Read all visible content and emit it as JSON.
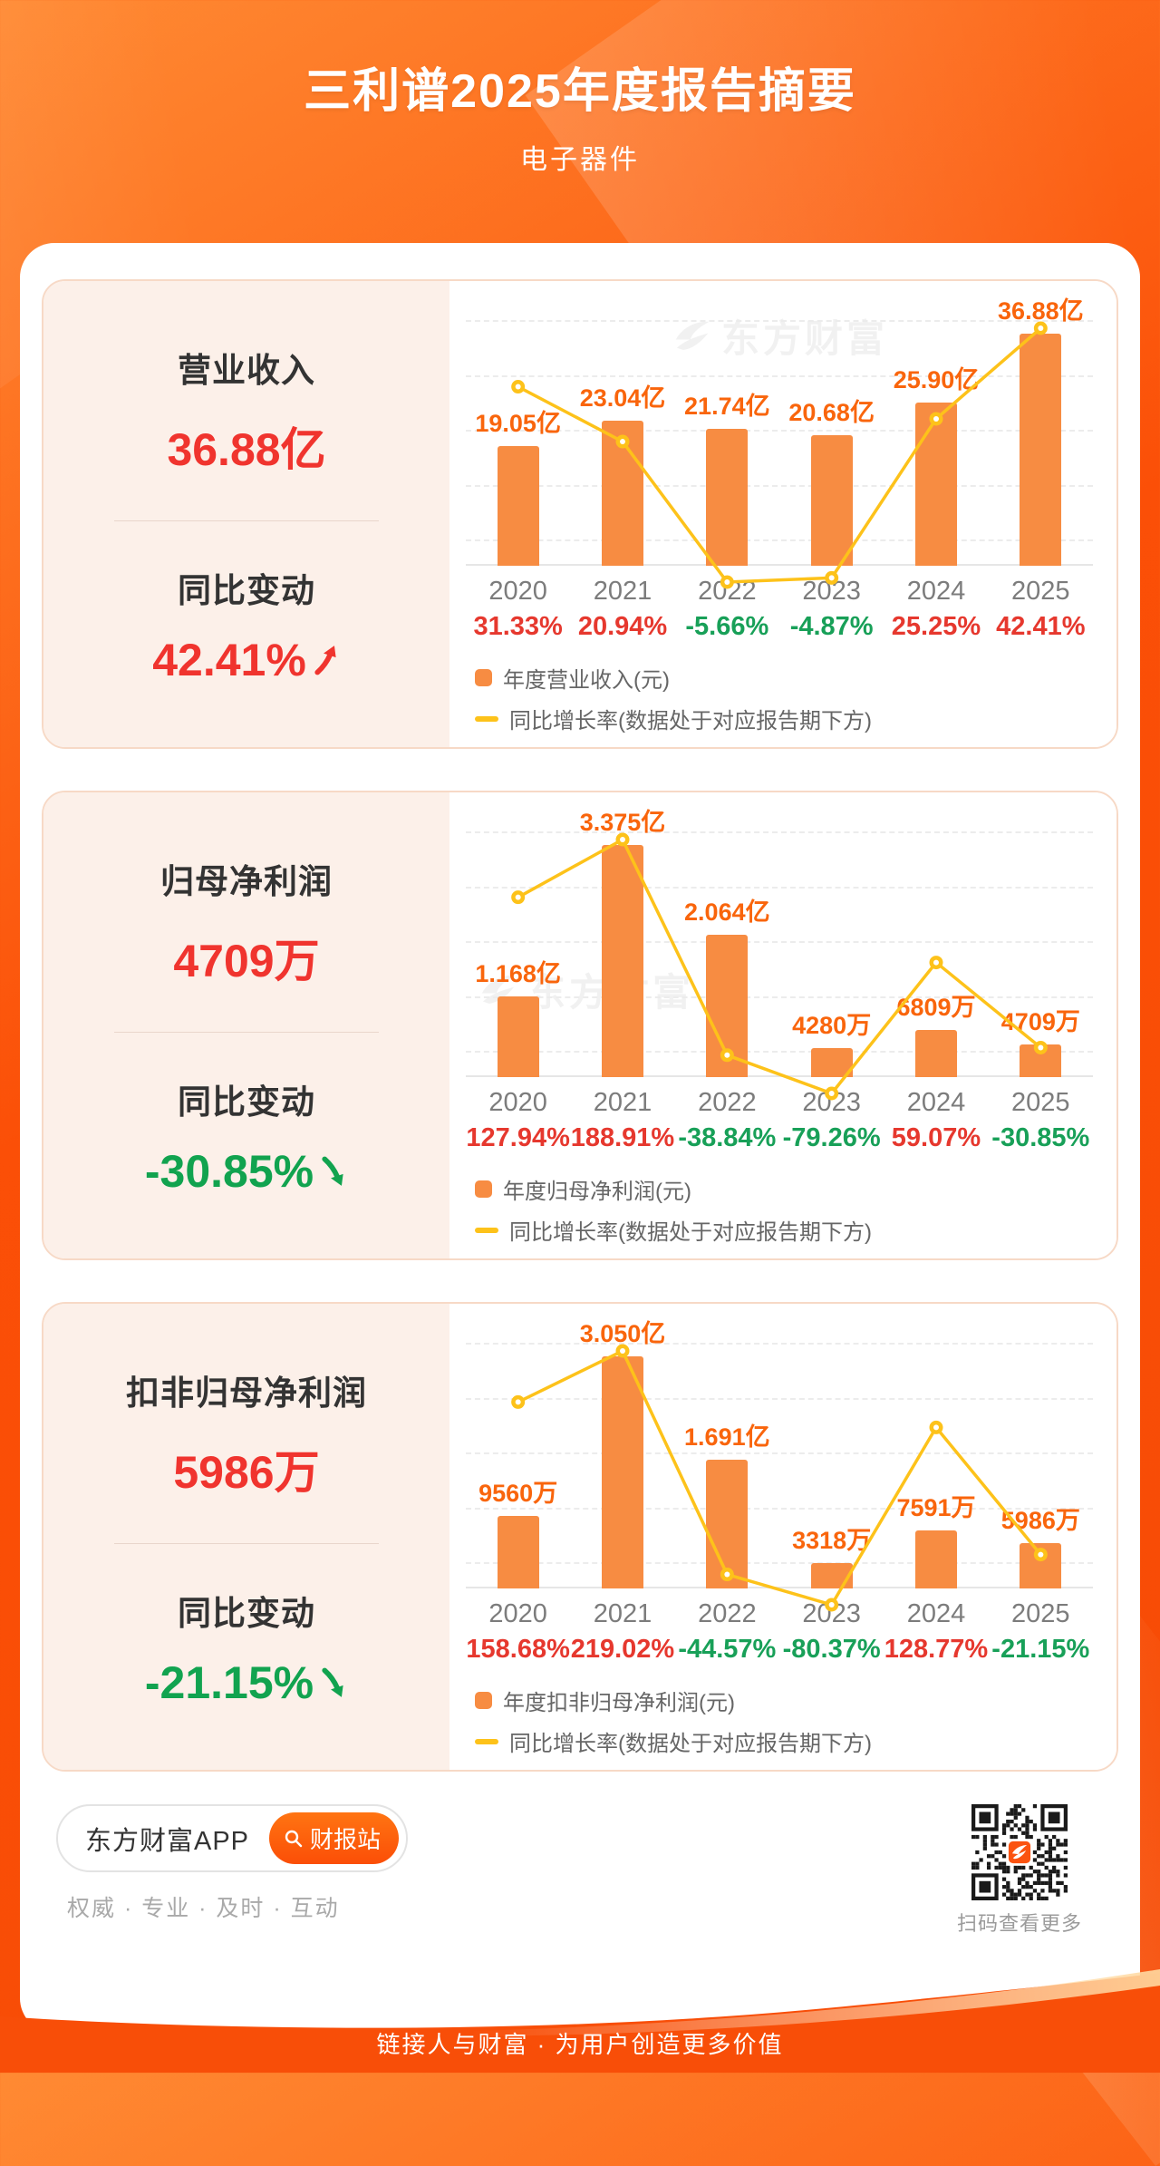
{
  "header": {
    "title": "三利谱2025年度报告摘要",
    "subtitle": "电子器件"
  },
  "watermark": "东方财富",
  "colors": {
    "bar": "#f78c42",
    "line": "#fdc21a",
    "value_label": "#f9650c",
    "up_red": "#f0342e",
    "down_green": "#11a34f",
    "background_orange": "#fb4f07",
    "panel_pink": "#fcf0e9",
    "panel_border": "#f7d9c6"
  },
  "panels": [
    {
      "title": "营业收入",
      "value": "36.88亿",
      "change_title": "同比变动",
      "change_value": "42.41%",
      "change_dir": "up"
    },
    {
      "title": "归母净利润",
      "value": "4709万",
      "change_title": "同比变动",
      "change_value": "-30.85%",
      "change_dir": "down"
    },
    {
      "title": "扣非归母净利润",
      "value": "5986万",
      "change_title": "同比变动",
      "change_value": "-21.15%",
      "change_dir": "down"
    }
  ],
  "chart_data": [
    {
      "type": "bar+line",
      "title": "营业收入",
      "categories": [
        "2020",
        "2021",
        "2022",
        "2023",
        "2024",
        "2025"
      ],
      "series": [
        {
          "name": "年度营业收入(元)",
          "type": "bar",
          "unit": "亿",
          "values": [
            19.05,
            23.04,
            21.74,
            20.68,
            25.9,
            36.88
          ],
          "labels": [
            "19.05亿",
            "23.04亿",
            "21.74亿",
            "20.68亿",
            "25.90亿",
            "36.88亿"
          ]
        },
        {
          "name": "同比增长率(数据处于对应报告期下方)",
          "type": "line",
          "unit": "%",
          "values": [
            31.33,
            20.94,
            -5.66,
            -4.87,
            25.25,
            42.41
          ],
          "labels": [
            "31.33%",
            "20.94%",
            "-5.66%",
            "-4.87%",
            "25.25%",
            "42.41%"
          ]
        }
      ],
      "grid": true,
      "legend_position": "bottom-left"
    },
    {
      "type": "bar+line",
      "title": "归母净利润",
      "categories": [
        "2020",
        "2021",
        "2022",
        "2023",
        "2024",
        "2025"
      ],
      "series": [
        {
          "name": "年度归母净利润(元)",
          "type": "bar",
          "unit": "万",
          "values": [
            11680,
            33750,
            20640,
            4280,
            6809,
            4709
          ],
          "labels": [
            "1.168亿",
            "3.375亿",
            "2.064亿",
            "4280万",
            "6809万",
            "4709万"
          ]
        },
        {
          "name": "同比增长率(数据处于对应报告期下方)",
          "type": "line",
          "unit": "%",
          "values": [
            127.94,
            188.91,
            -38.84,
            -79.26,
            59.07,
            -30.85
          ],
          "labels": [
            "127.94%",
            "188.91%",
            "-38.84%",
            "-79.26%",
            "59.07%",
            "-30.85%"
          ]
        }
      ],
      "grid": true,
      "legend_position": "bottom-left"
    },
    {
      "type": "bar+line",
      "title": "扣非归母净利润",
      "categories": [
        "2020",
        "2021",
        "2022",
        "2023",
        "2024",
        "2025"
      ],
      "series": [
        {
          "name": "年度扣非归母净利润(元)",
          "type": "bar",
          "unit": "万",
          "values": [
            9560,
            30500,
            16910,
            3318,
            7591,
            5986
          ],
          "labels": [
            "9560万",
            "3.050亿",
            "1.691亿",
            "3318万",
            "7591万",
            "5986万"
          ]
        },
        {
          "name": "同比增长率(数据处于对应报告期下方)",
          "type": "line",
          "unit": "%",
          "values": [
            158.68,
            219.02,
            -44.57,
            -80.37,
            128.77,
            -21.15
          ],
          "labels": [
            "158.68%",
            "219.02%",
            "-44.57%",
            "-80.37%",
            "128.77%",
            "-21.15%"
          ]
        }
      ],
      "grid": true,
      "legend_position": "bottom-left"
    }
  ],
  "footer": {
    "app_label": "东方财富APP",
    "report_button": "财报站",
    "tagline": "权威 · 专业 · 及时 · 互动",
    "qr_caption": "扫码查看更多",
    "bottom_slogan": "链接人与财富 · 为用户创造更多价值"
  }
}
